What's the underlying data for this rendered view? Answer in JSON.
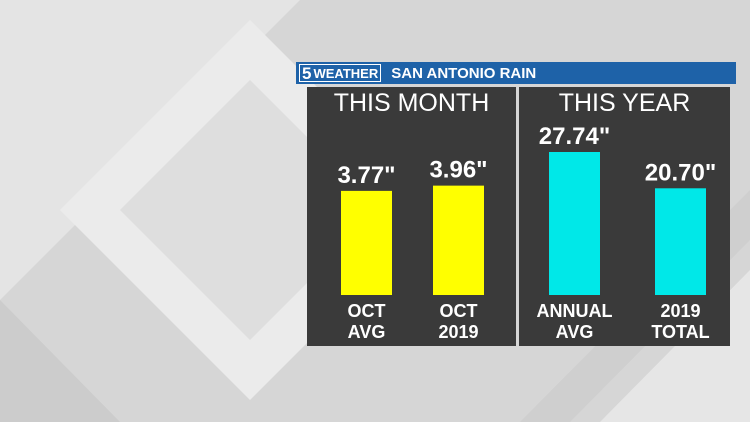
{
  "header": {
    "logo_number": "5",
    "logo_text": "WEATHER",
    "title": "SAN ANTONIO RAIN"
  },
  "colors": {
    "header_bg": "#1e62a8",
    "panel_bg": "#3a3a3a",
    "month_bar": "#ffff00",
    "year_bar": "#00e8e8"
  },
  "chart_data": [
    {
      "type": "bar",
      "title": "THIS MONTH",
      "categories": [
        "OCT\nAVG",
        "OCT\n2019"
      ],
      "values": [
        3.77,
        3.96
      ],
      "value_labels": [
        "3.77\"",
        "3.96\""
      ],
      "ylim": [
        0,
        5.25
      ]
    },
    {
      "type": "bar",
      "title": "THIS YEAR",
      "categories": [
        "ANNUAL\nAVG",
        "2019\nTOTAL"
      ],
      "values": [
        27.74,
        20.7
      ],
      "value_labels": [
        "27.74\"",
        "20.70\""
      ],
      "ylim": [
        0,
        27.74
      ]
    }
  ]
}
